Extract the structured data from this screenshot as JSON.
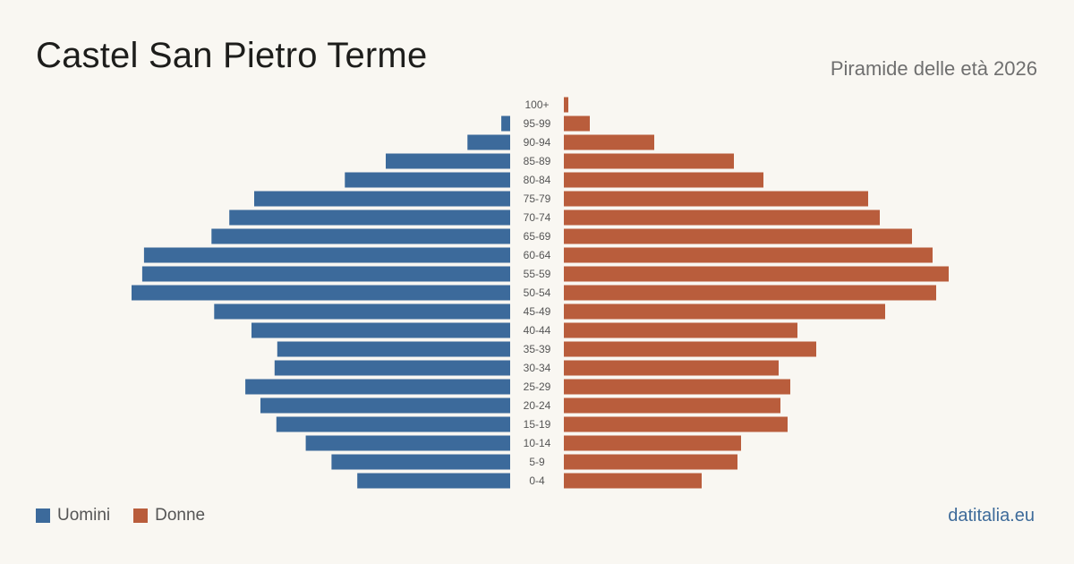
{
  "header": {
    "title": "Castel San Pietro Terme",
    "subtitle": "Piramide delle età 2026"
  },
  "legend": {
    "men_label": "Uomini",
    "women_label": "Donne"
  },
  "footer": {
    "brand": "datitalia.eu"
  },
  "colors": {
    "men": "#3c6a9b",
    "women": "#b95d3c",
    "background": "#f9f7f2",
    "age_label": "#555555"
  },
  "chart_data": {
    "type": "bar",
    "orientation": "horizontal-pyramid",
    "categories": [
      "100+",
      "95-99",
      "90-94",
      "85-89",
      "80-84",
      "75-79",
      "70-74",
      "65-69",
      "60-64",
      "55-59",
      "50-54",
      "45-49",
      "40-44",
      "35-39",
      "30-34",
      "25-29",
      "20-24",
      "15-19",
      "10-14",
      "5-9",
      "0-4"
    ],
    "series": [
      {
        "name": "Uomini",
        "values": [
          0,
          10,
          48,
          140,
          186,
          288,
          316,
          336,
          412,
          414,
          426,
          333,
          291,
          262,
          265,
          298,
          281,
          263,
          230,
          201,
          172
        ]
      },
      {
        "name": "Donne",
        "values": [
          5,
          29,
          101,
          190,
          223,
          340,
          353,
          389,
          412,
          430,
          416,
          359,
          261,
          282,
          240,
          253,
          242,
          250,
          198,
          194,
          154
        ]
      }
    ],
    "xlim": [
      0,
      430
    ],
    "legend_position": "bottom-left",
    "grid": false
  }
}
